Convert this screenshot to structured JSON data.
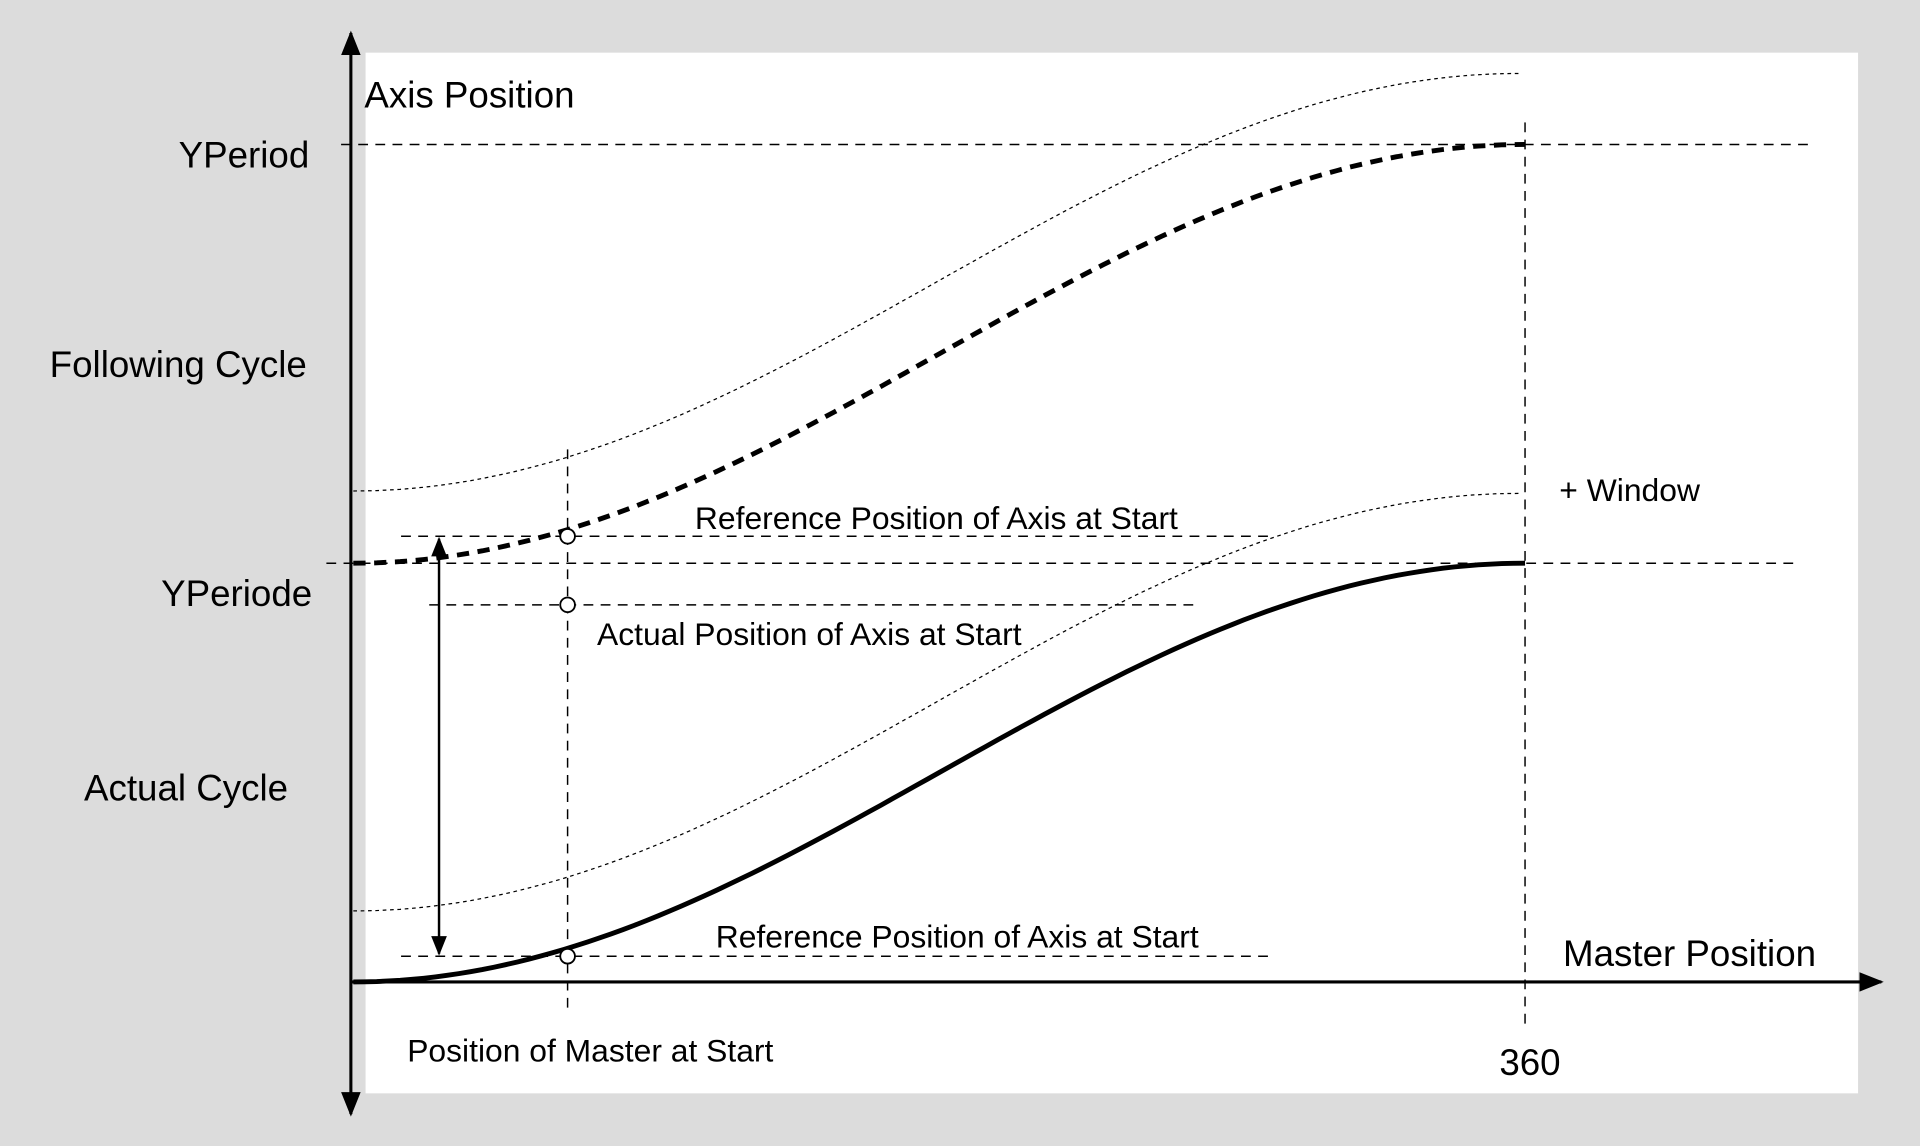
{
  "diagram": {
    "axis_y_label": "Axis Position",
    "axis_x_label": "Master Position",
    "y_labels": {
      "yperiod": "YPeriod",
      "following_cycle": "Following Cycle",
      "yperiode": "YPeriode",
      "actual_cycle": "Actual Cycle"
    },
    "annotations": {
      "ref_pos_upper": "Reference Position of Axis at Start",
      "actual_pos": "Actual Position of Axis at Start",
      "ref_pos_lower": "Reference Position of Axis at Start",
      "window": "+ Window",
      "master_start": "Position of Master at Start",
      "x_end": "360"
    },
    "colors": {
      "background": "#dcdcdc",
      "panel": "#ffffff",
      "ink": "#000000"
    }
  }
}
